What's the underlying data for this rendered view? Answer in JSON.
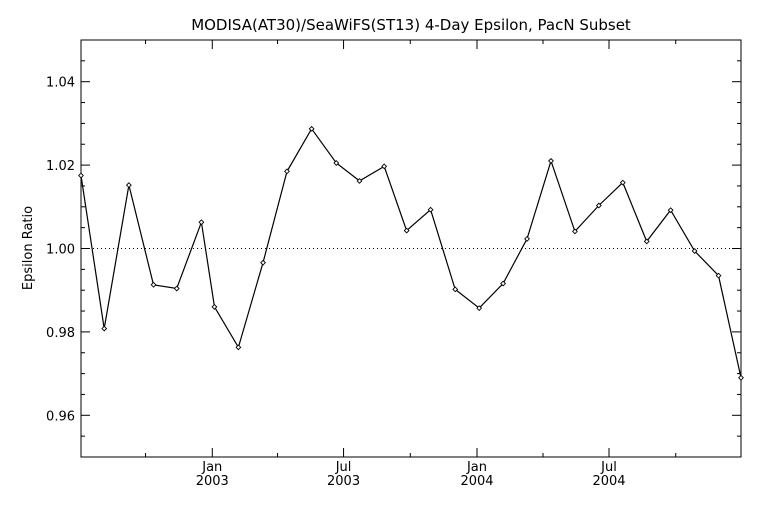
{
  "chart_data": {
    "type": "line",
    "title": "MODISA(AT30)/SeaWiFS(ST13) 4-Day Epsilon, PacN Subset",
    "xlabel": "",
    "ylabel": "Epsilon Ratio",
    "ylim": [
      0.95,
      1.05
    ],
    "xlim": [
      "2002-07-04",
      "2004-12-30"
    ],
    "y_ticks": [
      {
        "value": 0.96,
        "label": "0.96"
      },
      {
        "value": 0.98,
        "label": "0.98"
      },
      {
        "value": 1.0,
        "label": "1.00"
      },
      {
        "value": 1.02,
        "label": "1.02"
      },
      {
        "value": 1.04,
        "label": "1.04"
      }
    ],
    "x_ticks": [
      {
        "date": "2003-01-01",
        "month": "Jan",
        "year": "2003"
      },
      {
        "date": "2003-07-01",
        "month": "Jul",
        "year": "2003"
      },
      {
        "date": "2004-01-01",
        "month": "Jan",
        "year": "2004"
      },
      {
        "date": "2004-07-01",
        "month": "Jul",
        "year": "2004"
      }
    ],
    "reference_line": {
      "y": 1.0,
      "style": "dotted"
    },
    "grid": false,
    "series": [
      {
        "marker": "diamond",
        "points": [
          {
            "x": "2002-07-04",
            "y": 1.0175
          },
          {
            "x": "2002-08-05",
            "y": 0.9808
          },
          {
            "x": "2002-09-08",
            "y": 1.0152
          },
          {
            "x": "2002-10-12",
            "y": 0.9913
          },
          {
            "x": "2002-11-13",
            "y": 0.9904
          },
          {
            "x": "2002-12-17",
            "y": 1.0063
          },
          {
            "x": "2003-01-04",
            "y": 0.986
          },
          {
            "x": "2003-02-06",
            "y": 0.9763
          },
          {
            "x": "2003-03-12",
            "y": 0.9966
          },
          {
            "x": "2003-04-14",
            "y": 1.0185
          },
          {
            "x": "2003-05-18",
            "y": 1.0287
          },
          {
            "x": "2003-06-21",
            "y": 1.0205
          },
          {
            "x": "2003-07-23",
            "y": 1.0162
          },
          {
            "x": "2003-08-26",
            "y": 1.0197
          },
          {
            "x": "2003-09-26",
            "y": 1.0043
          },
          {
            "x": "2003-10-29",
            "y": 1.0093
          },
          {
            "x": "2003-12-02",
            "y": 0.9902
          },
          {
            "x": "2004-01-04",
            "y": 0.9857
          },
          {
            "x": "2004-02-06",
            "y": 0.9916
          },
          {
            "x": "2004-03-10",
            "y": 1.0023
          },
          {
            "x": "2004-04-12",
            "y": 1.021
          },
          {
            "x": "2004-05-15",
            "y": 1.0041
          },
          {
            "x": "2004-06-17",
            "y": 1.0103
          },
          {
            "x": "2004-07-20",
            "y": 1.0158
          },
          {
            "x": "2004-08-22",
            "y": 1.0017
          },
          {
            "x": "2004-09-24",
            "y": 1.0092
          },
          {
            "x": "2004-10-27",
            "y": 0.9994
          },
          {
            "x": "2004-11-29",
            "y": 0.9935
          },
          {
            "x": "2004-12-30",
            "y": 0.969
          }
        ]
      }
    ]
  }
}
